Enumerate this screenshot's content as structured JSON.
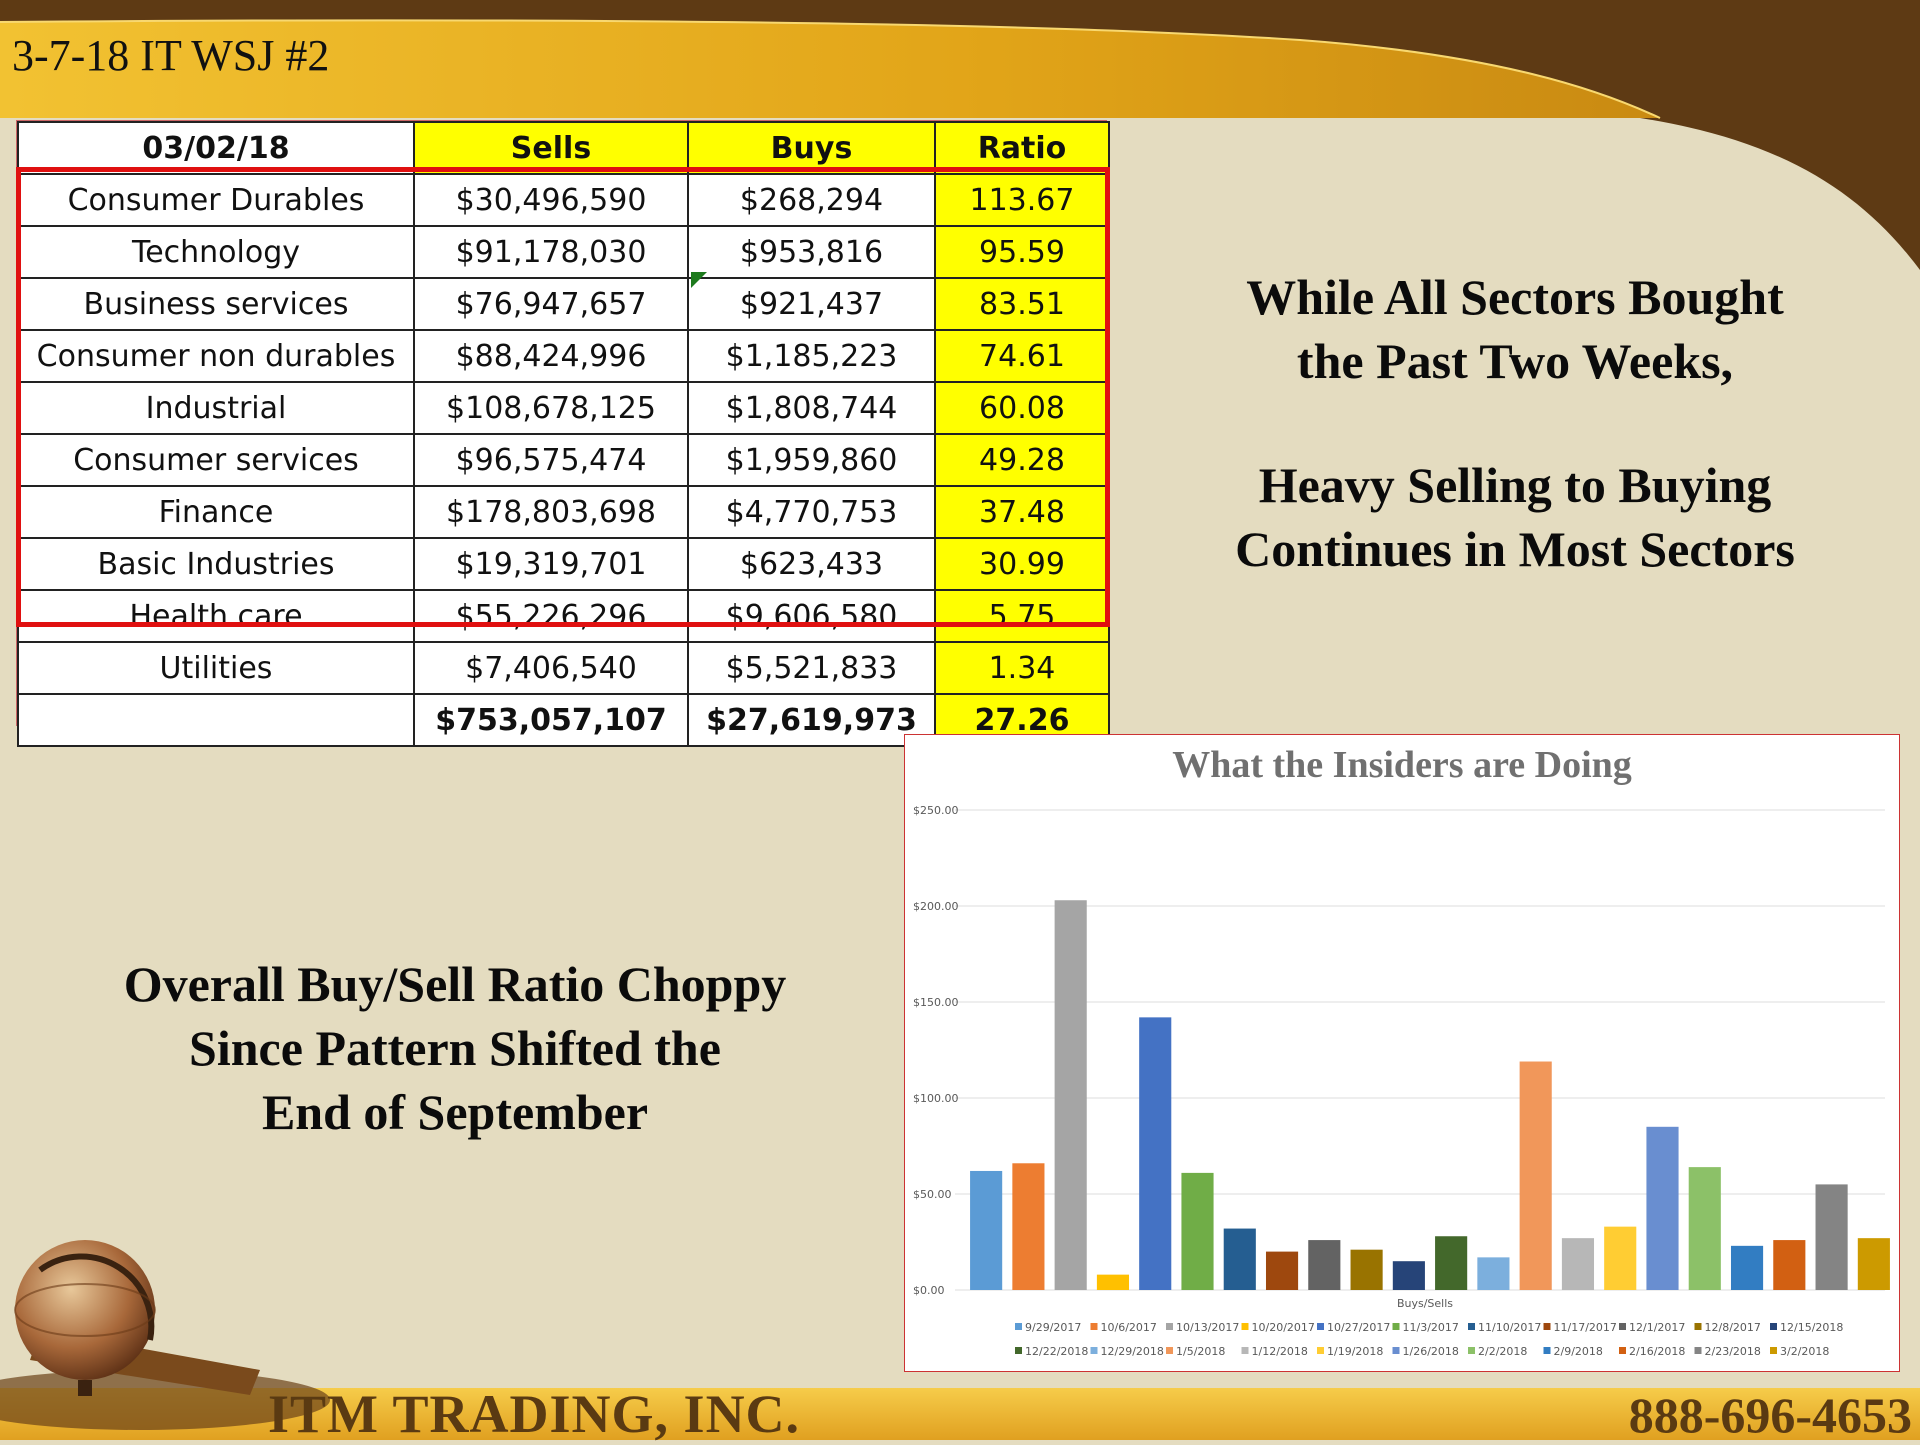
{
  "slide": {
    "title": "3-7-18 IT WSJ #2"
  },
  "table": {
    "headers": [
      "03/02/18",
      "Sells",
      "Buys",
      "Ratio"
    ],
    "rows": [
      [
        "Consumer Durables",
        "$30,496,590",
        "$268,294",
        "113.67"
      ],
      [
        "Technology",
        "$91,178,030",
        "$953,816",
        "95.59"
      ],
      [
        "Business services",
        "$76,947,657",
        "$921,437",
        "83.51"
      ],
      [
        "Consumer non durables",
        "$88,424,996",
        "$1,185,223",
        "74.61"
      ],
      [
        "Industrial",
        "$108,678,125",
        "$1,808,744",
        "60.08"
      ],
      [
        "Consumer services",
        "$96,575,474",
        "$1,959,860",
        "49.28"
      ],
      [
        "Finance",
        "$178,803,698",
        "$4,770,753",
        "37.48"
      ],
      [
        "Basic Industries",
        "$19,319,701",
        "$623,433",
        "30.99"
      ],
      [
        "Health care",
        "$55,226,296",
        "$9,606,580",
        "5.75"
      ],
      [
        "Utilities",
        "$7,406,540",
        "$5,521,833",
        "1.34"
      ]
    ],
    "total": [
      "",
      "$753,057,107",
      "$27,619,973",
      "27.26"
    ]
  },
  "callouts": {
    "right_line1": "While All Sectors Bought",
    "right_line2": "the Past Two Weeks,",
    "right_line3": "Heavy Selling to Buying",
    "right_line4": "Continues in Most Sectors",
    "left_line1": "Overall Buy/Sell Ratio Choppy",
    "left_line2": "Since Pattern Shifted the",
    "left_line3": "End of September"
  },
  "footer": {
    "company": "ITM TRADING, INC.",
    "phone": "888-696-4653"
  },
  "chart_data": {
    "type": "bar",
    "title": "What the Insiders are Doing",
    "xlabel": "Buys/Sells",
    "ylabel": "",
    "ylim": [
      0,
      250
    ],
    "yticks": [
      "$0.00",
      "$50.00",
      "$100.00",
      "$150.00",
      "$200.00",
      "$250.00"
    ],
    "grid": true,
    "legend": "bottom",
    "series": [
      {
        "name": "9/29/2017",
        "value": 62,
        "color": "#5b9bd5"
      },
      {
        "name": "10/6/2017",
        "value": 66,
        "color": "#ed7d31"
      },
      {
        "name": "10/13/2017",
        "value": 203,
        "color": "#a5a5a5"
      },
      {
        "name": "10/20/2017",
        "value": 8,
        "color": "#ffc000"
      },
      {
        "name": "10/27/2017",
        "value": 142,
        "color": "#4472c4"
      },
      {
        "name": "11/3/2017",
        "value": 61,
        "color": "#70ad47"
      },
      {
        "name": "11/10/2017",
        "value": 32,
        "color": "#255e91"
      },
      {
        "name": "11/17/2017",
        "value": 20,
        "color": "#9e480e"
      },
      {
        "name": "12/1/2017",
        "value": 26,
        "color": "#636363"
      },
      {
        "name": "12/8/2017",
        "value": 21,
        "color": "#997300"
      },
      {
        "name": "12/15/2018",
        "value": 15,
        "color": "#264478"
      },
      {
        "name": "12/22/2018",
        "value": 28,
        "color": "#43682b"
      },
      {
        "name": "12/29/2018",
        "value": 17,
        "color": "#7cafdd"
      },
      {
        "name": "1/5/2018",
        "value": 119,
        "color": "#f1975a"
      },
      {
        "name": "1/12/2018",
        "value": 27,
        "color": "#b7b7b7"
      },
      {
        "name": "1/19/2018",
        "value": 33,
        "color": "#ffcd33"
      },
      {
        "name": "1/26/2018",
        "value": 85,
        "color": "#698ed0"
      },
      {
        "name": "2/2/2018",
        "value": 64,
        "color": "#8cc168"
      },
      {
        "name": "2/9/2018",
        "value": 23,
        "color": "#327dc2"
      },
      {
        "name": "2/16/2018",
        "value": 26,
        "color": "#d26012"
      },
      {
        "name": "2/23/2018",
        "value": 55,
        "color": "#848484"
      },
      {
        "name": "3/2/2018",
        "value": 27,
        "color": "#cc9a00"
      }
    ]
  }
}
